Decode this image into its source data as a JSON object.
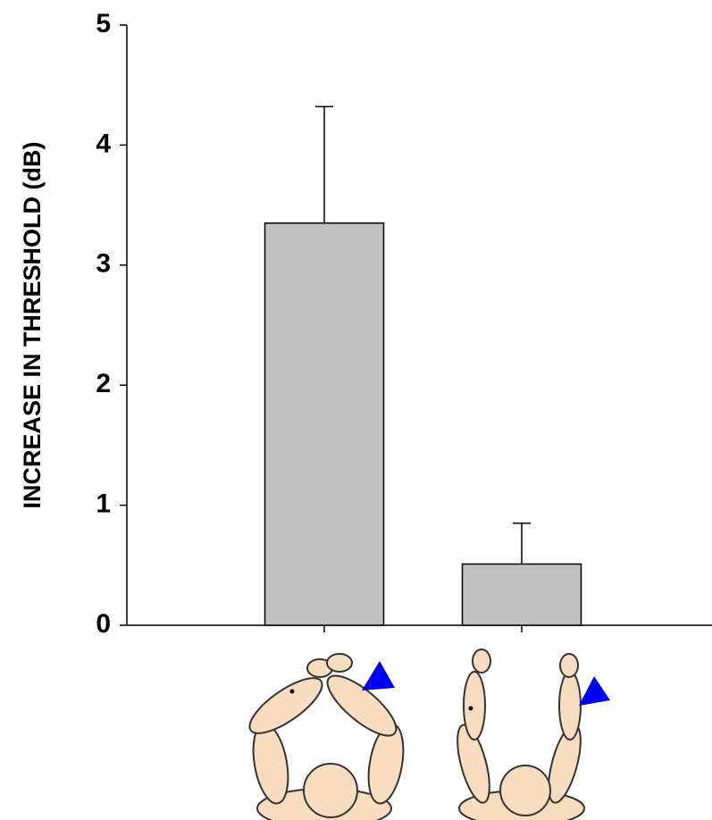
{
  "chart_data": {
    "type": "bar",
    "y_label": "INCREASE IN THRESHOLD (dB)",
    "categories": [
      null,
      null
    ],
    "values": [
      3.35,
      0.51
    ],
    "errors": [
      0.97,
      0.34
    ],
    "color": "#c0c0c0",
    "ylim": [
      0,
      5
    ],
    "yticks": [
      0,
      1,
      2,
      3,
      4,
      5
    ],
    "grid": false
  }
}
